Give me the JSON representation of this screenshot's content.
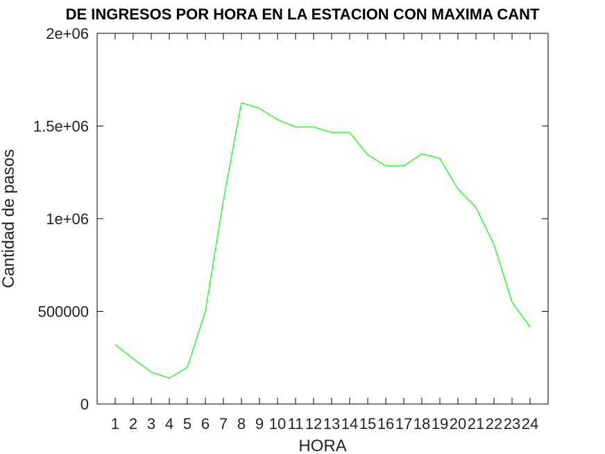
{
  "chart_data": {
    "type": "line",
    "title": "DE INGRESOS POR HORA EN LA ESTACION CON MAXIMA CANT",
    "xlabel": "HORA",
    "ylabel": "Cantidad de pasos",
    "x": [
      1,
      2,
      3,
      4,
      5,
      6,
      7,
      8,
      9,
      10,
      11,
      12,
      13,
      14,
      15,
      16,
      17,
      18,
      19,
      20,
      21,
      22,
      23,
      24
    ],
    "x_tick_labels": [
      "1",
      "2",
      "3",
      "4",
      "5",
      "6",
      "7",
      "8",
      "9",
      "10",
      "11",
      "12",
      "13",
      "14",
      "15",
      "16",
      "17",
      "18",
      "19",
      "20",
      "21",
      "22",
      "23",
      "24"
    ],
    "series": [
      {
        "values": [
          320000,
          245000,
          172000,
          140000,
          198000,
          500000,
          1100000,
          1625000,
          1595000,
          1535000,
          1495000,
          1495000,
          1465000,
          1465000,
          1345000,
          1285000,
          1285000,
          1350000,
          1325000,
          1160000,
          1060000,
          860000,
          550000,
          415000
        ],
        "color": "#00ff00"
      }
    ],
    "ylim": [
      0,
      2000000
    ],
    "xlim": [
      0,
      25
    ],
    "y_ticks": [
      0,
      500000,
      1000000,
      1500000,
      2000000
    ],
    "y_tick_labels": [
      "0",
      "500000",
      "1e+06",
      "1.5e+06",
      "2e+06"
    ],
    "grid": false,
    "legend": "none"
  }
}
